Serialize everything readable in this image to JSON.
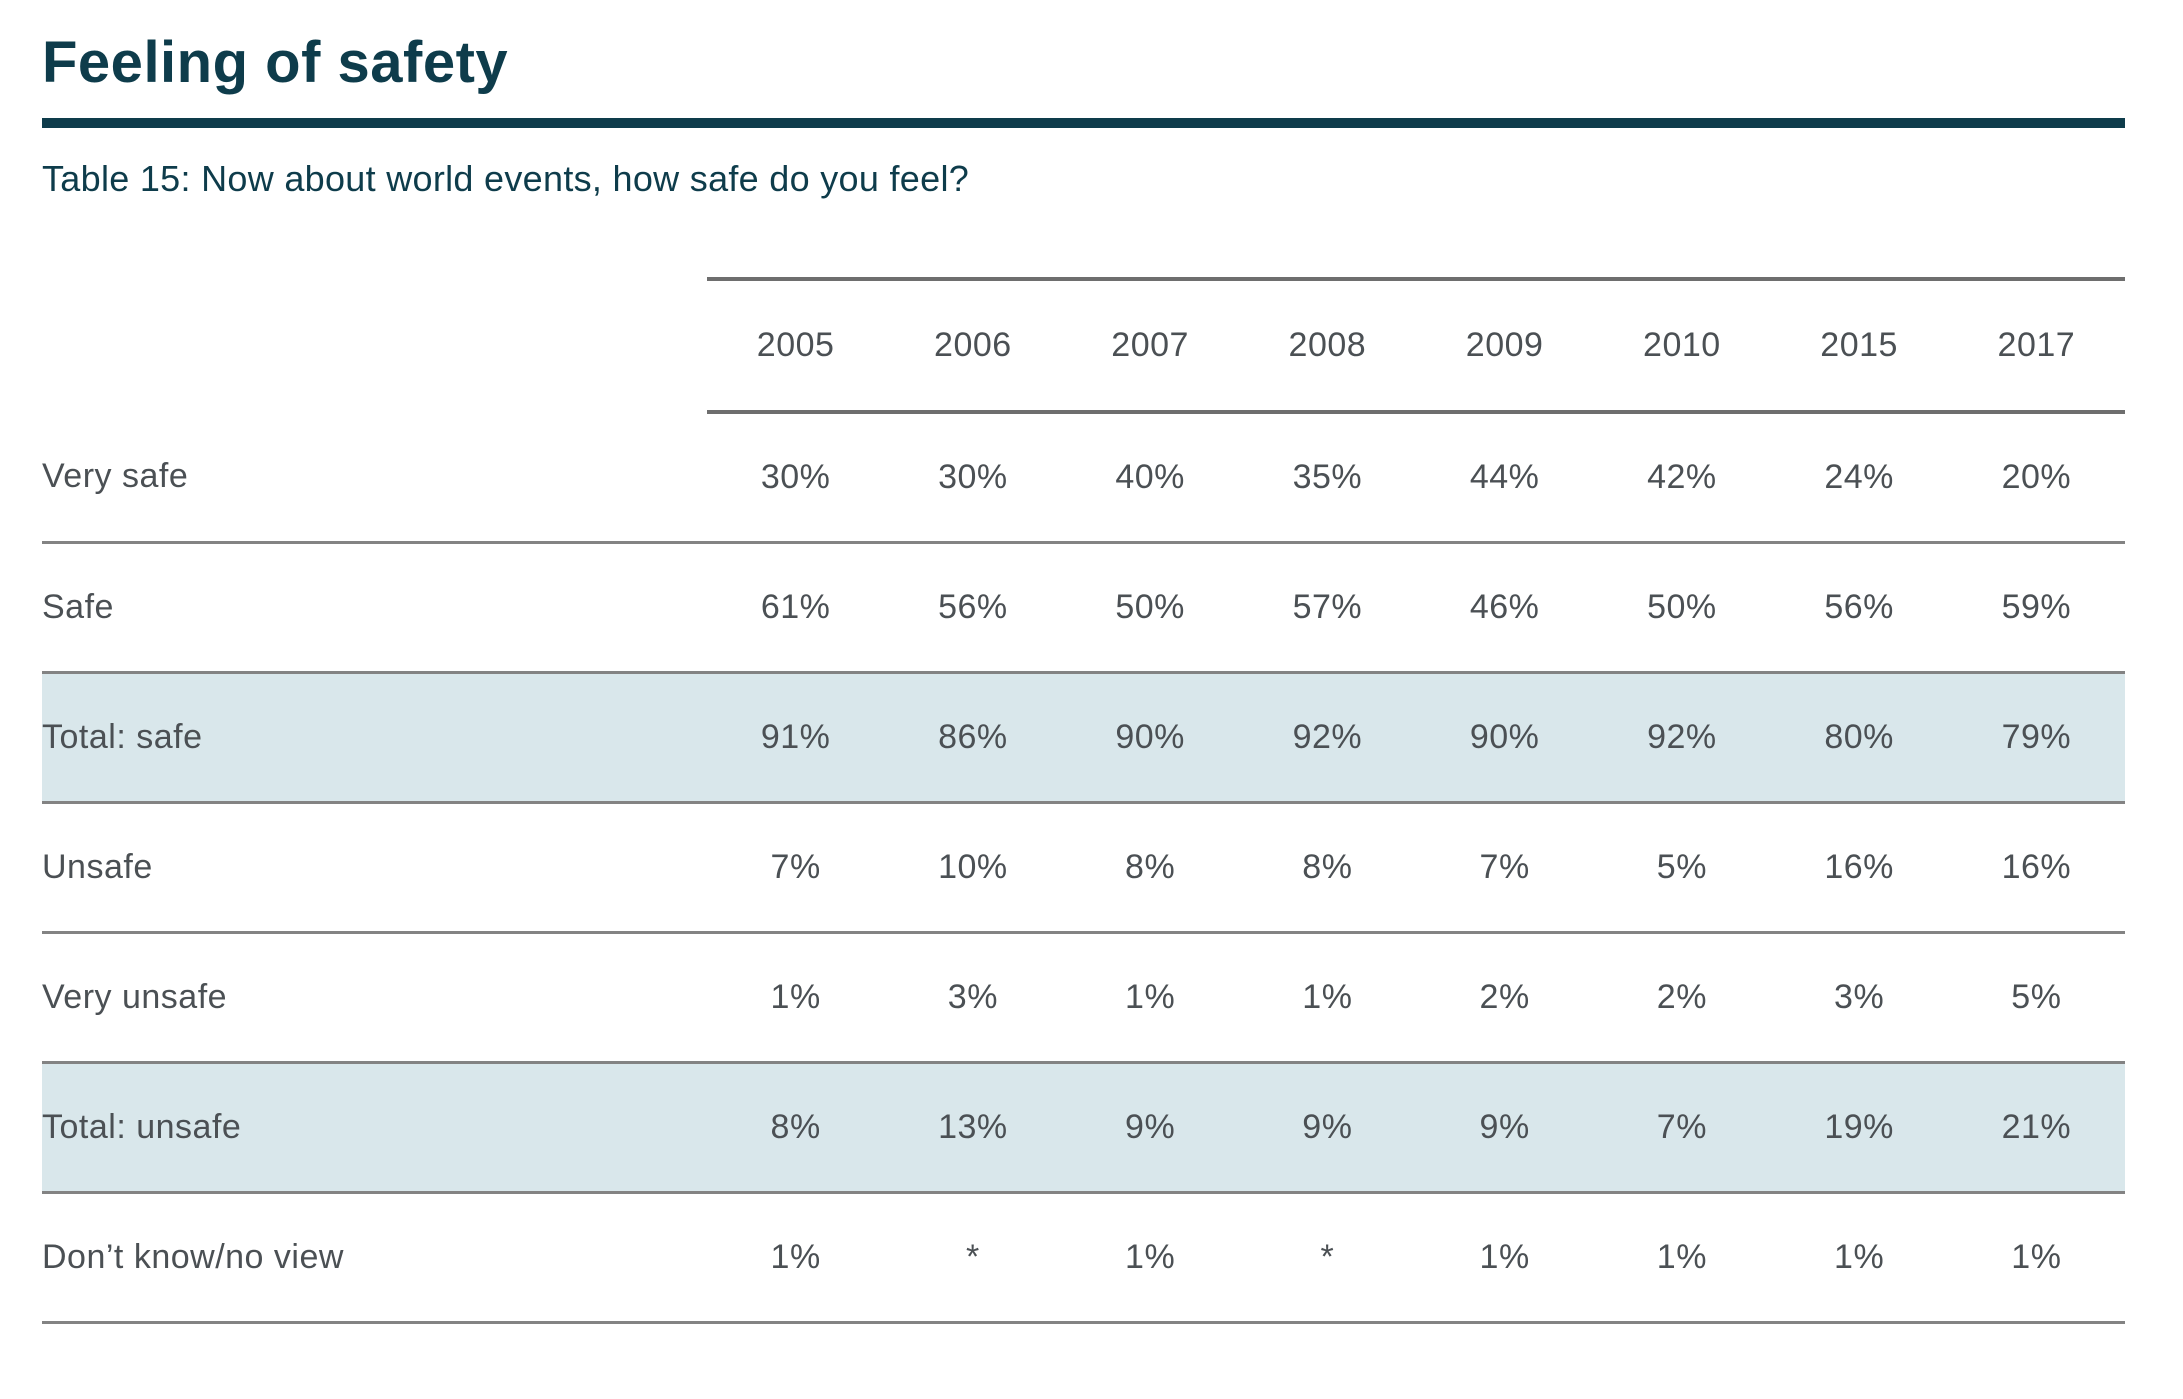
{
  "page": {
    "title": "Feeling of safety",
    "subtitle": "Table 15: Now about world events, how safe do you feel?"
  },
  "colors": {
    "accent_teal": "#0E3C4B",
    "highlight_row_bg": "#D9E7EB",
    "header_line_gray": "#6E6E6E",
    "row_line_gray": "#838383",
    "table_text_gray": "#4B5054"
  },
  "chart_data": {
    "type": "table",
    "title": "Table 15: Now about world events, how safe do you feel?",
    "columns": [
      "2005",
      "2006",
      "2007",
      "2008",
      "2009",
      "2010",
      "2015",
      "2017"
    ],
    "rows": [
      {
        "label": "Very safe",
        "highlight": false,
        "values": [
          "30%",
          "30%",
          "40%",
          "35%",
          "44%",
          "42%",
          "24%",
          "20%"
        ]
      },
      {
        "label": "Safe",
        "highlight": false,
        "values": [
          "61%",
          "56%",
          "50%",
          "57%",
          "46%",
          "50%",
          "56%",
          "59%"
        ]
      },
      {
        "label": "Total: safe",
        "highlight": true,
        "values": [
          "91%",
          "86%",
          "90%",
          "92%",
          "90%",
          "92%",
          "80%",
          "79%"
        ]
      },
      {
        "label": "Unsafe",
        "highlight": false,
        "values": [
          "7%",
          "10%",
          "8%",
          "8%",
          "7%",
          "5%",
          "16%",
          "16%"
        ]
      },
      {
        "label": "Very unsafe",
        "highlight": false,
        "values": [
          "1%",
          "3%",
          "1%",
          "1%",
          "2%",
          "2%",
          "3%",
          "5%"
        ]
      },
      {
        "label": "Total: unsafe",
        "highlight": true,
        "values": [
          "8%",
          "13%",
          "9%",
          "9%",
          "9%",
          "7%",
          "19%",
          "21%"
        ]
      },
      {
        "label": "Don’t know/no view",
        "highlight": false,
        "values": [
          "1%",
          "*",
          "1%",
          "*",
          "1%",
          "1%",
          "1%",
          "1%"
        ]
      }
    ],
    "footnote_symbol_meaning_visible": false
  }
}
